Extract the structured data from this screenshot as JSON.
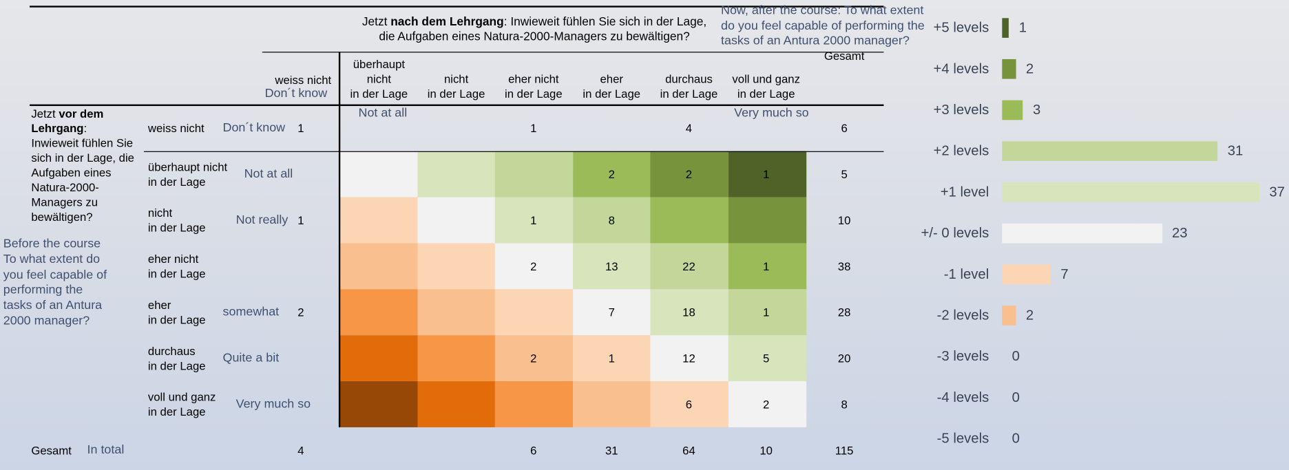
{
  "table": {
    "col_title_parts": [
      "Jetzt ",
      "nach dem Lehrgang",
      ": Inwieweit fühlen Sie sich in der Lage,\ndie Aufgaben eines Natura-2000-Managers zu bewältigen?"
    ],
    "col_title_en": "Now, after the course: To what extent\ndo you feel capable of performing the\ntasks of an Antura 2000 manager?",
    "col_headers": [
      "weiss nicht",
      "überhaupt\nnicht\nin der Lage",
      "nicht\nin der Lage",
      "eher nicht\nin der Lage",
      "eher\nin der Lage",
      "durchaus\nin der Lage",
      "voll und ganz\nin der Lage"
    ],
    "col_dontknow_en": "Don´t know",
    "total_header": "Gesamt",
    "scale_low_en": "Not at all",
    "scale_high_en": "Very much so",
    "row_title_parts": [
      "Jetzt ",
      "vor dem\nLehrgang",
      ":\nInwieweit fühlen Sie\nsich in der Lage, die\nAufgaben eines\nNatura-2000-\nManagers zu\nbewältigen?"
    ],
    "row_title_en": "Before the course\nTo what extent do\nyou feel capable of\nperforming the\ntasks of an Antura\n2000 manager?",
    "rows": [
      {
        "label": "weiss nicht",
        "label_en": "Don´t know",
        "values": [
          1,
          null,
          null,
          1,
          null,
          4,
          null
        ],
        "total": 6
      },
      {
        "label": "überhaupt nicht\nin der Lage",
        "label_en": "Not at all",
        "values": [
          null,
          null,
          null,
          null,
          2,
          2,
          1
        ],
        "total": 5
      },
      {
        "label": "nicht\nin der Lage",
        "label_en": "Not really",
        "values": [
          1,
          null,
          null,
          1,
          8,
          null,
          null
        ],
        "total": 10
      },
      {
        "label": "eher nicht\nin der Lage",
        "values": [
          null,
          null,
          null,
          2,
          13,
          22,
          1
        ],
        "total": 38
      },
      {
        "label": "eher\nin der Lage",
        "label_en": "somewhat",
        "values": [
          2,
          null,
          null,
          null,
          7,
          18,
          1
        ],
        "total": 28
      },
      {
        "label": "durchaus\nin der Lage",
        "label_en": "Quite a bit",
        "values": [
          null,
          null,
          null,
          2,
          1,
          12,
          5
        ],
        "total": 20
      },
      {
        "label": "voll und ganz\nin der Lage",
        "label_en": "Very much so",
        "values": [
          null,
          null,
          null,
          null,
          null,
          6,
          2
        ],
        "total": 8
      }
    ],
    "total_row": {
      "label": "Gesamt",
      "label_en": "In total",
      "values": [
        4,
        null,
        null,
        6,
        31,
        64,
        10
      ],
      "total": 115
    }
  },
  "chart_data": {
    "type": "bar",
    "orientation": "horizontal",
    "categories": [
      "+5 levels",
      "+4 levels",
      "+3 levels",
      "+2 levels",
      "+1 level",
      "+/- 0 levels",
      "-1 level",
      "-2 levels",
      "-3 levels",
      "-4 levels",
      "-5 levels"
    ],
    "values": [
      1,
      2,
      3,
      31,
      37,
      23,
      7,
      2,
      0,
      0,
      0
    ],
    "colors": [
      "#4f6228",
      "#77933c",
      "#9bbb59",
      "#c4d79b",
      "#d8e4bc",
      "#f2f2f2",
      "#fcd5b4",
      "#fabf8f",
      "#f79646",
      "#e26b0a",
      "#974706"
    ]
  }
}
